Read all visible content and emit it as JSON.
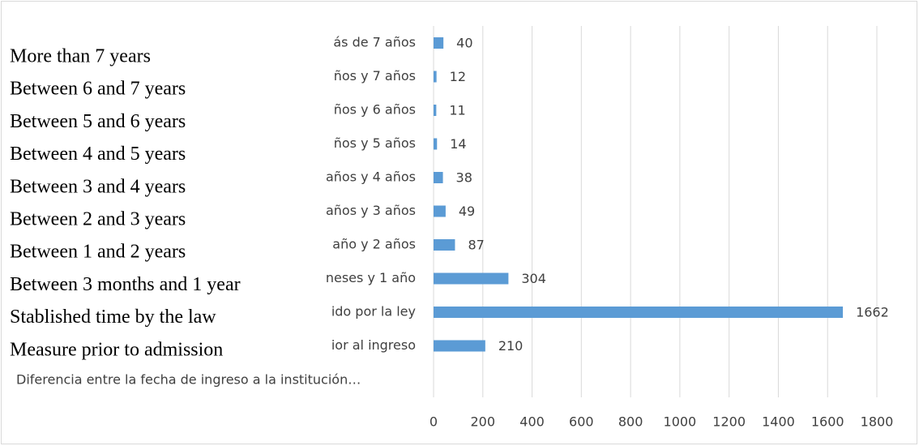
{
  "chart_data": {
    "type": "bar",
    "orientation": "horizontal",
    "axis_title": "Diferencia entre la fecha de ingreso a la institución…",
    "categories": [
      "ás de 7 años",
      "ños y 7 años",
      "ños y 6 años",
      "ños y 5 años",
      "años y 4 años",
      "años y 3 años",
      "año y 2 años",
      "neses y 1 año",
      "ido por la ley",
      "ior al ingreso"
    ],
    "overlay_labels": [
      "More than 7 years",
      "Between 6 and 7 years",
      "Between 5 and 6 years",
      "Between 4 and 5 years",
      "Between 3 and 4 years",
      "Between 2 and 3 years",
      "Between 1 and 2 years",
      "Between 3 months and 1 year",
      "Stablished time by the law",
      "Measure prior to admission"
    ],
    "values": [
      40,
      12,
      11,
      14,
      38,
      49,
      87,
      304,
      1662,
      210
    ],
    "color": "#5b9bd5",
    "xlim": [
      0,
      1800
    ],
    "xticks": [
      0,
      200,
      400,
      600,
      800,
      1000,
      1200,
      1400,
      1600,
      1800
    ],
    "grid": true
  }
}
